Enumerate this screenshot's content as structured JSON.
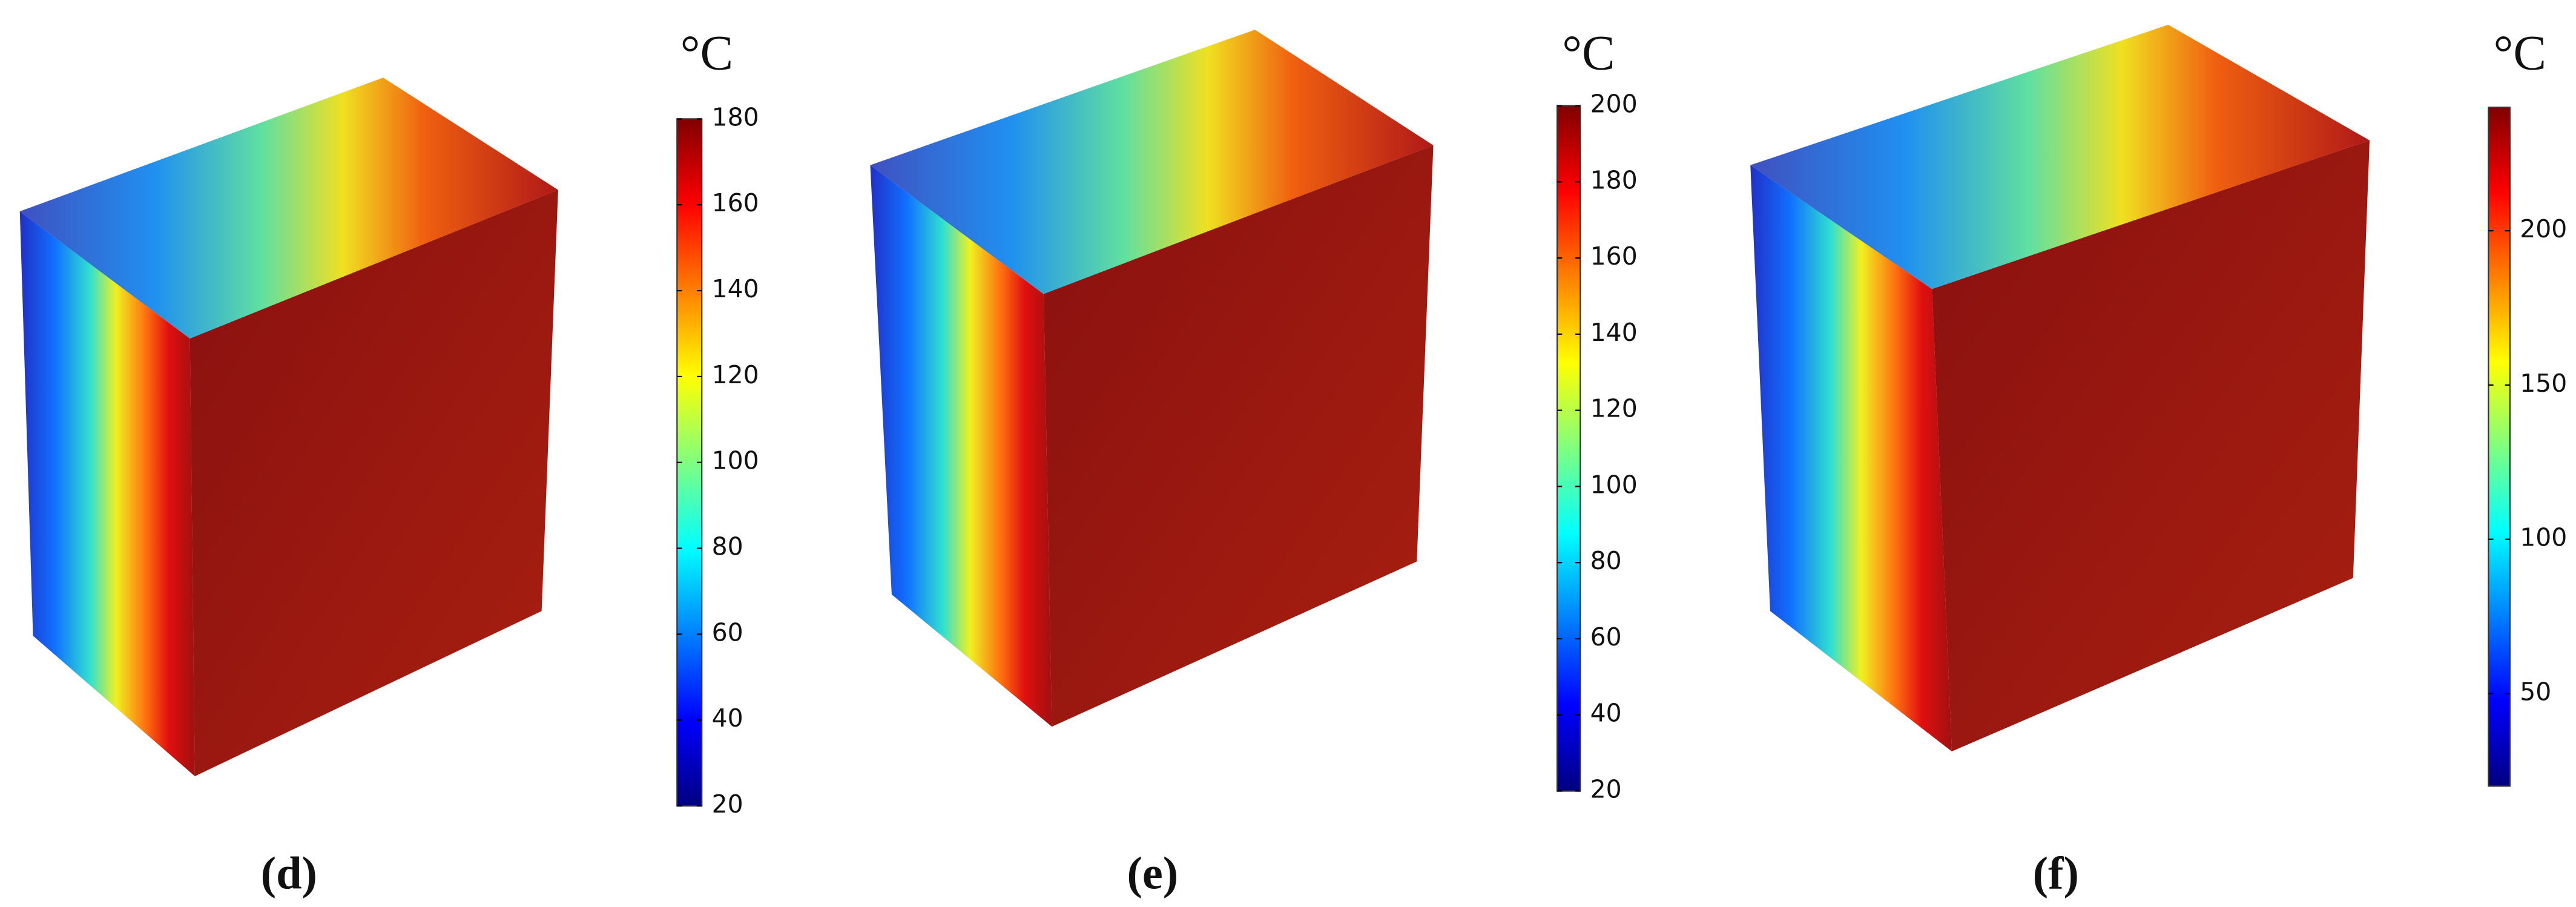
{
  "panels": [
    {
      "label": "(d)",
      "unit": "°C",
      "scale": {
        "lim": [
          20,
          180
        ],
        "ticks": [
          20,
          40,
          60,
          80,
          100,
          120,
          140,
          160,
          180
        ]
      }
    },
    {
      "label": "(e)",
      "unit": "°C",
      "scale": {
        "lim": [
          20,
          200
        ],
        "ticks": [
          20,
          40,
          60,
          80,
          100,
          120,
          140,
          160,
          180,
          200
        ]
      }
    },
    {
      "label": "(f)",
      "unit": "°C",
      "scale": {
        "lim": [
          20,
          240
        ],
        "ticks": [
          50,
          100,
          150,
          200
        ]
      }
    }
  ]
}
